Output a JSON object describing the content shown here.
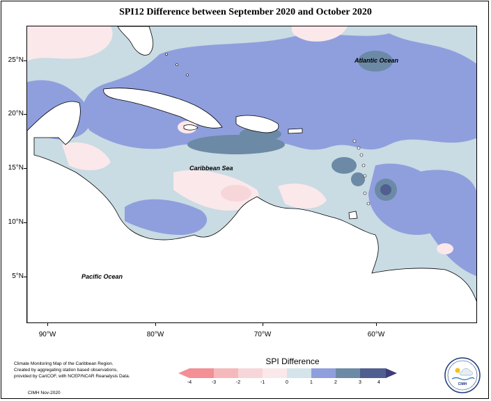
{
  "title": "SPI12 Difference between September 2020 and October 2020",
  "latitude_labels": [
    "25°N",
    "20°N",
    "15°N",
    "10°N",
    "5°N"
  ],
  "longitude_labels": [
    "90°W",
    "80°W",
    "70°W",
    "60°W"
  ],
  "place_labels": {
    "atlantic": "Atlantic Ocean",
    "caribbean": "Caribbean Sea",
    "pacific": "Pacific Ocean"
  },
  "legend": {
    "title": "SPI Difference",
    "ticks": [
      "-4",
      "-3",
      "-2",
      "-1",
      "0",
      "1",
      "2",
      "3",
      "4"
    ],
    "colors": [
      "#f38f95",
      "#f5b9bc",
      "#f7d6d9",
      "#fbe8ea",
      "#d5e4ea",
      "#c8dbe3",
      "#8f9fdd",
      "#6c8aa6",
      "#505f8f",
      "#3e3d78"
    ]
  },
  "footer": {
    "line1": "Climate Monitoring Map of the Caribbean Region.",
    "line2": "Created by aggregating station based observations,",
    "line3": "provided by CariCOF, with NCEP/NCAR Reanalysis Data.",
    "date": "CIMH Nov-2020"
  },
  "logo_text": "CIMH"
}
